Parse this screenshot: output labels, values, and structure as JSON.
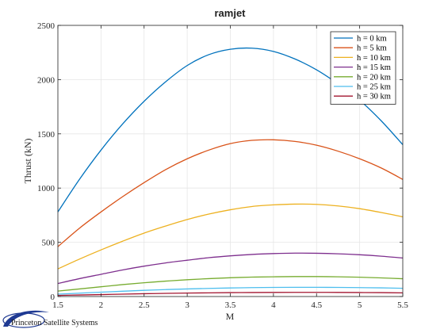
{
  "chart_data": {
    "type": "line",
    "title": "ramjet",
    "xlabel": "M",
    "ylabel": "Thrust (kN)",
    "xlim": [
      1.5,
      5.5
    ],
    "ylim": [
      0,
      2500
    ],
    "xticks": [
      "1.5",
      "2",
      "2.5",
      "3",
      "3.5",
      "4",
      "4.5",
      "5",
      "5.5"
    ],
    "yticks": [
      "0",
      "500",
      "1000",
      "1500",
      "2000",
      "2500"
    ],
    "grid": true,
    "legend_position": "top-right",
    "x": [
      1.5,
      1.75,
      2.0,
      2.25,
      2.5,
      2.75,
      3.0,
      3.25,
      3.5,
      3.75,
      4.0,
      4.25,
      4.5,
      4.75,
      5.0,
      5.25,
      5.5
    ],
    "series": [
      {
        "name": "h =  0 km",
        "color": "#0072BD",
        "values": [
          780,
          1080,
          1350,
          1590,
          1800,
          1980,
          2130,
          2230,
          2280,
          2290,
          2260,
          2190,
          2090,
          1960,
          1810,
          1620,
          1400
        ]
      },
      {
        "name": "h =  5 km",
        "color": "#D95319",
        "values": [
          460,
          630,
          780,
          920,
          1050,
          1170,
          1270,
          1350,
          1410,
          1440,
          1445,
          1430,
          1395,
          1340,
          1270,
          1185,
          1080
        ]
      },
      {
        "name": "h = 10 km",
        "color": "#EDB120",
        "values": [
          255,
          345,
          430,
          510,
          585,
          650,
          710,
          760,
          800,
          830,
          845,
          852,
          850,
          835,
          810,
          775,
          735
        ]
      },
      {
        "name": "h = 15 km",
        "color": "#7E2F8E",
        "values": [
          120,
          165,
          205,
          245,
          280,
          310,
          335,
          358,
          375,
          388,
          396,
          400,
          399,
          394,
          385,
          372,
          355
        ]
      },
      {
        "name": "h = 20 km",
        "color": "#77AC30",
        "values": [
          50,
          70,
          90,
          110,
          127,
          142,
          155,
          165,
          173,
          179,
          182,
          184,
          184,
          182,
          178,
          172,
          164
        ]
      },
      {
        "name": "h = 25 km",
        "color": "#4DBEEE",
        "values": [
          22,
          31,
          40,
          49,
          57,
          64,
          70,
          75,
          79,
          82,
          84,
          85,
          85,
          84,
          82,
          80,
          76
        ]
      },
      {
        "name": "h = 30 km",
        "color": "#A2142F",
        "values": [
          10,
          14,
          18,
          22,
          26,
          29,
          32,
          34,
          36,
          37,
          38,
          38.5,
          38.5,
          38,
          37,
          36,
          34
        ]
      }
    ]
  },
  "logo": {
    "text": "Princeton Satellite Systems",
    "color": "#1f3a93"
  }
}
